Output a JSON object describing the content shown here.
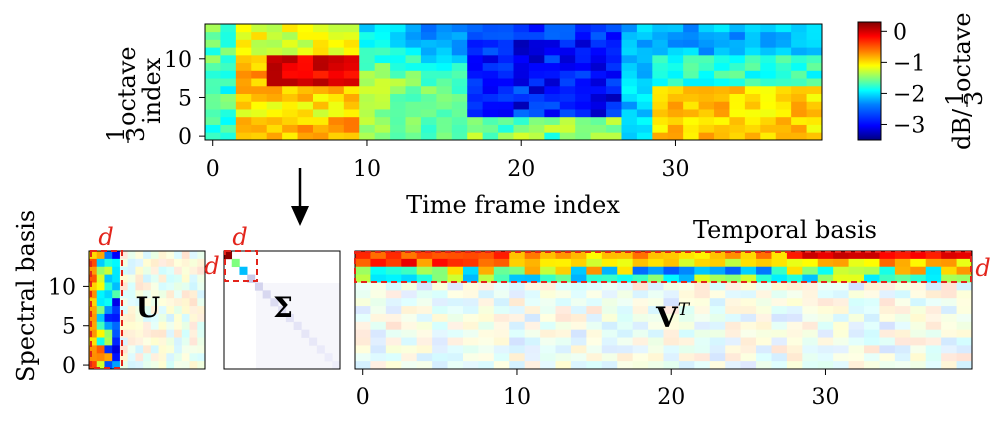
{
  "top_plot": {
    "ylabel_frac_num": "1",
    "ylabel_frac_den": "3",
    "ylabel_line1": "octave",
    "ylabel_line2": "index",
    "xlabel": "Time frame index",
    "xticks": [
      "0",
      "10",
      "20",
      "30"
    ],
    "yticks": [
      "0",
      "5",
      "10"
    ],
    "colorbar": {
      "ticks": [
        "0",
        "−1",
        "−2",
        "−3"
      ],
      "label_prefix": "dB/",
      "label_frac_num": "1",
      "label_frac_den": "3",
      "label_suffix": "octave",
      "colors": [
        "#00007f",
        "#0000ff",
        "#007fff",
        "#00ffff",
        "#7fff7f",
        "#ffff00",
        "#ff7f00",
        "#ff0000",
        "#7f0000"
      ]
    }
  },
  "bottom": {
    "ylabel": "Spectral basis",
    "yticks": [
      "0",
      "5",
      "10"
    ],
    "xticks": [
      "0",
      "10",
      "20",
      "30"
    ],
    "d_label": "d",
    "U_label": "U",
    "Sigma_label": "Σ",
    "VT_label": "V",
    "VT_sup": "T",
    "temporal_label": "Temporal basis"
  },
  "chart_data": {
    "type": "heatmap",
    "x_range": [
      0,
      39
    ],
    "y_range": [
      0,
      14
    ],
    "z_range": [
      -3.5,
      0.3
    ],
    "xlabel": "Time frame index",
    "colorbar_label": "dB/ 1/3 octave"
  }
}
